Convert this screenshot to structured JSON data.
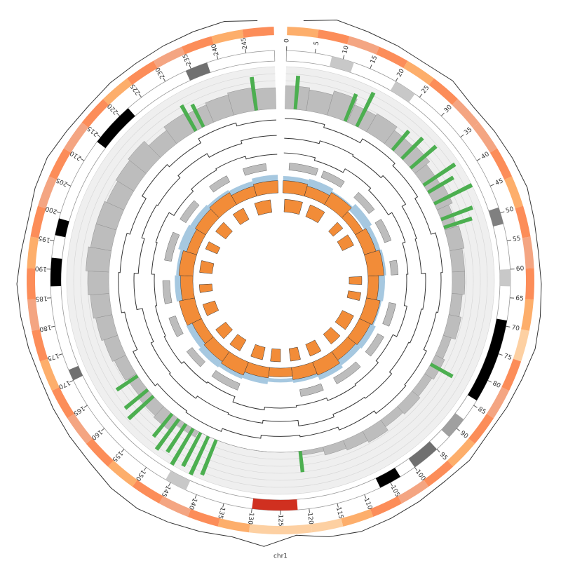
{
  "chart_data": {
    "type": "circos",
    "label": "chr1",
    "xlim": [
      0,
      250
    ],
    "xticks": [
      0,
      5,
      10,
      15,
      20,
      25,
      30,
      35,
      40,
      45,
      50,
      55,
      60,
      65,
      70,
      75,
      80,
      85,
      90,
      95,
      100,
      105,
      110,
      115,
      120,
      125,
      130,
      135,
      140,
      145,
      150,
      155,
      160,
      165,
      170,
      175,
      180,
      185,
      190,
      195,
      200,
      205,
      210,
      215,
      220,
      225,
      230,
      235,
      240,
      245
    ],
    "bins": [
      0,
      5,
      10,
      15,
      20,
      25,
      30,
      35,
      40,
      45,
      50,
      55,
      60,
      65,
      70,
      75,
      80,
      85,
      90,
      95,
      100,
      105,
      110,
      115,
      120,
      125,
      130,
      135,
      140,
      145,
      150,
      155,
      160,
      165,
      170,
      175,
      180,
      185,
      190,
      195,
      200,
      205,
      210,
      215,
      220,
      225,
      230,
      235,
      240,
      245,
      250
    ],
    "step_bins": [
      0,
      10,
      20,
      30,
      40,
      50,
      60,
      70,
      80,
      90,
      100,
      110,
      120,
      130,
      140,
      150,
      160,
      170,
      180,
      190,
      200,
      210,
      220,
      230,
      240,
      250
    ],
    "ideogram": [
      {
        "start": 8,
        "end": 12,
        "color": "#c8c8c8"
      },
      {
        "start": 20,
        "end": 24,
        "color": "#c8c8c8"
      },
      {
        "start": 49,
        "end": 52,
        "color": "#808080"
      },
      {
        "start": 60,
        "end": 63,
        "color": "#c8c8c8"
      },
      {
        "start": 69,
        "end": 84,
        "color": "#000000"
      },
      {
        "start": 88,
        "end": 92,
        "color": "#a0a0a0"
      },
      {
        "start": 95,
        "end": 100,
        "color": "#707070"
      },
      {
        "start": 103,
        "end": 107,
        "color": "#000000"
      },
      {
        "start": 122,
        "end": 130,
        "color": "#d03020"
      },
      {
        "start": 142,
        "end": 146,
        "color": "#c8c8c8"
      },
      {
        "start": 170,
        "end": 172,
        "color": "#707070"
      },
      {
        "start": 187,
        "end": 192,
        "color": "#000000"
      },
      {
        "start": 196,
        "end": 199,
        "color": "#000000"
      },
      {
        "start": 214,
        "end": 222,
        "color": "#000000"
      },
      {
        "start": 234,
        "end": 238,
        "color": "#707070"
      }
    ],
    "heatmap": {
      "colors": [
        "#fdd0a2",
        "#fdae6b",
        "#fc8d59",
        "#f4a582"
      ],
      "values": [
        1,
        2,
        3,
        2,
        1,
        2,
        3,
        3,
        2,
        1,
        2,
        3,
        2,
        1,
        0,
        2,
        3,
        2,
        1,
        2,
        3,
        2,
        1,
        0,
        0,
        0,
        1,
        2,
        3,
        2,
        1,
        2,
        3,
        2,
        1,
        2,
        3,
        2,
        1,
        2,
        3,
        2,
        3,
        2,
        1,
        2,
        3,
        2,
        1,
        2
      ]
    },
    "line": {
      "color": "#333333",
      "ylim": [
        0,
        1
      ],
      "values": [
        0.5,
        0.7,
        0.6,
        0.55,
        0.5,
        0.6,
        0.45,
        0.5,
        0.55,
        0.6,
        0.5,
        0.45,
        0.5,
        0.55,
        0.6,
        0.5,
        0.45,
        0.4,
        0.5,
        0.45,
        0.5,
        0.55,
        0.6,
        0.5,
        0.3,
        0.7,
        0.5,
        0.6,
        0.7,
        0.8,
        0.75,
        0.6,
        0.55,
        0.5,
        0.45,
        0.5,
        0.55,
        0.6,
        0.5,
        0.45,
        0.55,
        0.6,
        0.5,
        0.45,
        0.5,
        0.5,
        0.55,
        0.6,
        0.65,
        0.5
      ]
    },
    "histogram": {
      "color": "#bdbdbd",
      "ylim": [
        0,
        1
      ],
      "values": [
        0.55,
        0.5,
        0.6,
        0.45,
        0.5,
        0.4,
        0.45,
        0.35,
        0.4,
        0.3,
        0.35,
        0.3,
        0.3,
        0.25,
        0.3,
        0.2,
        0.25,
        0.2,
        0.25,
        0.2,
        0.3,
        0.25,
        0.2,
        0.1,
        0,
        0,
        0,
        0,
        0,
        0.15,
        0.35,
        0.3,
        0.25,
        0.3,
        0.35,
        0.4,
        0.45,
        0.5,
        0.55,
        0.5,
        0.5,
        0.45,
        0.5,
        0.55,
        0.4,
        0.5,
        0.45,
        0.5,
        0.55,
        0.5
      ]
    },
    "highlights": {
      "color": "#4caf50",
      "ylim": [
        0,
        1
      ],
      "x": [
        2,
        14,
        17,
        27,
        30,
        33,
        38,
        40,
        43,
        47,
        49,
        82,
        120,
        140,
        142,
        144,
        146,
        148,
        150,
        152,
        158,
        160,
        164,
        230,
        232,
        245
      ],
      "values": [
        0.8,
        0.7,
        0.9,
        0.6,
        0.7,
        0.8,
        0.9,
        0.7,
        1.0,
        0.8,
        0.7,
        0.6,
        0.5,
        0.9,
        1.0,
        0.9,
        1.0,
        0.8,
        0.9,
        0.7,
        0.8,
        0.7,
        0.6,
        0.7,
        0.6,
        0.8
      ]
    },
    "steps": [
      {
        "color": "#333333",
        "values": [
          0.6,
          0.4,
          0.7,
          0.5,
          0.3,
          0.6,
          0.5,
          0.4,
          0.6,
          0.7,
          0.5,
          0.3,
          0.2,
          0.4,
          0.6,
          0.5,
          0.7,
          0.4,
          0.6,
          0.5,
          0.3,
          0.6,
          0.4,
          0.7,
          0.5
        ]
      },
      {
        "color": "#333333",
        "values": [
          0.4,
          0.6,
          0.5,
          0.7,
          0.4,
          0.3,
          0.6,
          0.5,
          0.4,
          0.6,
          0.5,
          0.7,
          0.3,
          0.5,
          0.4,
          0.6,
          0.5,
          0.3,
          0.7,
          0.4,
          0.6,
          0.5,
          0.7,
          0.4,
          0.6
        ]
      },
      {
        "color": "#333333",
        "values": [
          0.5,
          0.3,
          0.6,
          0.4,
          0.7,
          0.5,
          0.4,
          0.6,
          0.3,
          0.5,
          0.6,
          0.4,
          0.5,
          0.7,
          0.3,
          0.4,
          0.6,
          0.5,
          0.4,
          0.6,
          0.7,
          0.3,
          0.5,
          0.6,
          0.4
        ]
      }
    ],
    "gray_tiles": {
      "color": "#bdbdbd",
      "segments": [
        [
          2,
          12
        ],
        [
          14,
          22
        ],
        [
          28,
          36
        ],
        [
          40,
          48
        ],
        [
          55,
          60
        ],
        [
          70,
          78
        ],
        [
          82,
          90
        ],
        [
          95,
          105
        ],
        [
          110,
          118
        ],
        [
          140,
          150
        ],
        [
          155,
          162
        ],
        [
          168,
          175
        ],
        [
          180,
          188
        ],
        [
          195,
          205
        ],
        [
          210,
          218
        ],
        [
          225,
          232
        ],
        [
          238,
          246
        ]
      ]
    },
    "blue_area": {
      "color": "#a6c8e0",
      "ylim": [
        0,
        1
      ],
      "values": [
        0.5,
        0.6,
        0.4,
        0.7,
        0.5,
        0.6,
        0.5,
        0.4,
        0.6,
        0.5,
        0.7,
        0.4,
        0.3,
        0.5,
        0.6,
        0.7,
        0.5,
        0.4,
        0.6,
        0.5,
        0.7,
        0.6,
        0.5,
        0.4,
        0.6
      ]
    },
    "orange_area": {
      "color": "#f28c38",
      "ylim": [
        0,
        1
      ],
      "values": [
        0.7,
        0.6,
        0.8,
        0.5,
        0.7,
        0.9,
        0.6,
        0.8,
        0.7,
        0.6,
        0.8,
        0.7,
        0.5,
        0.6,
        0.8,
        0.7,
        0.6,
        0.9,
        0.7,
        0.8,
        0.6,
        0.7,
        0.8,
        0.6,
        0.7
      ]
    },
    "orange_tiles": {
      "color": "#f28c38",
      "segments": [
        [
          1,
          10
        ],
        [
          14,
          22
        ],
        [
          30,
          34
        ],
        [
          38,
          44
        ],
        [
          60,
          64
        ],
        [
          68,
          72
        ],
        [
          80,
          88
        ],
        [
          92,
          98
        ],
        [
          104,
          110
        ],
        [
          115,
          120
        ],
        [
          125,
          130
        ],
        [
          134,
          140
        ],
        [
          146,
          152
        ],
        [
          156,
          162
        ],
        [
          170,
          176
        ],
        [
          182,
          186
        ],
        [
          192,
          198
        ],
        [
          204,
          208
        ],
        [
          214,
          220
        ],
        [
          226,
          232
        ],
        [
          238,
          246
        ]
      ]
    }
  }
}
